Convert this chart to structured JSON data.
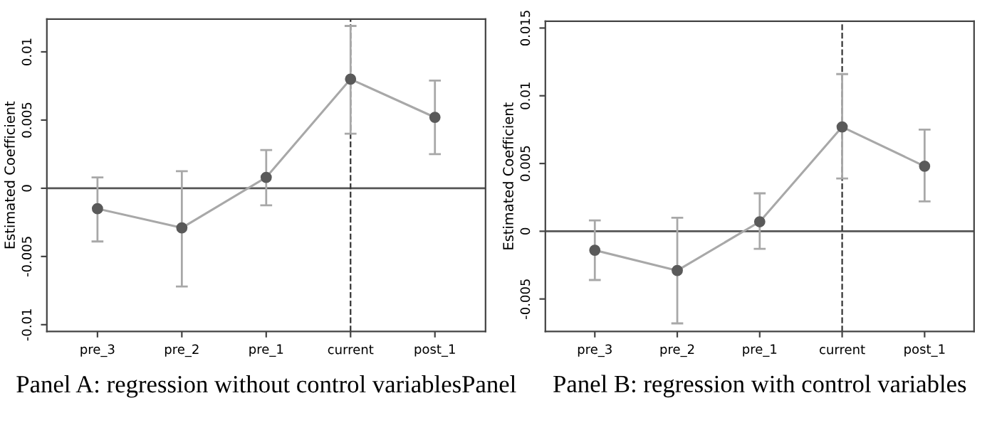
{
  "chart_data": [
    {
      "type": "line",
      "title": "Panel A: regression without control variablesPanel",
      "ylabel": "Estimated Coefficient",
      "categories": [
        "pre_3",
        "pre_2",
        "pre_1",
        "current",
        "post_1"
      ],
      "series": [
        {
          "color": "#a8a8a8",
          "colors": [
            "#5a5a5a",
            "#5a5a5a",
            "#5a5a5a",
            "#5a5a5a",
            "#5a5a5a"
          ],
          "values": [
            -0.0015,
            -0.0029,
            0.0008,
            0.008,
            0.0052
          ],
          "errors": [
            [
              -0.0039,
              0.0008
            ],
            [
              -0.0072,
              0.00125
            ],
            [
              -0.00125,
              0.0028
            ],
            [
              0.004,
              0.0119
            ],
            [
              0.0025,
              0.0079
            ]
          ]
        }
      ],
      "ylim": [
        -0.0105,
        0.0124
      ],
      "yticks": [
        -0.01,
        -0.005,
        0,
        0.005,
        0.01
      ],
      "marker": "circle",
      "line_style": "solid",
      "grid": false,
      "legend": false,
      "ref_lines": [
        {
          "axis": "y",
          "value": 0,
          "color": "#555555",
          "line_style": "solid"
        },
        {
          "axis": "x",
          "value": "current",
          "color": "#333333",
          "line_style": "dashed"
        }
      ]
    },
    {
      "type": "line",
      "title": "Panel B: regression with control variables",
      "ylabel": "Estimated Coefficient",
      "categories": [
        "pre_3",
        "pre_2",
        "pre_1",
        "current",
        "post_1"
      ],
      "series": [
        {
          "color": "#a8a8a8",
          "colors": [
            "#5a5a5a",
            "#5a5a5a",
            "#5a5a5a",
            "#5a5a5a",
            "#5a5a5a"
          ],
          "values": [
            -0.0014,
            -0.0029,
            0.0007,
            0.0077,
            0.0048
          ],
          "errors": [
            [
              -0.0036,
              0.0008
            ],
            [
              -0.0068,
              0.001
            ],
            [
              -0.0013,
              0.0028
            ],
            [
              0.0039,
              0.0116
            ],
            [
              0.0022,
              0.0075
            ]
          ]
        }
      ],
      "ylim": [
        -0.0074,
        0.0155
      ],
      "yticks": [
        -0.005,
        0,
        0.005,
        0.01,
        0.015
      ],
      "marker": "circle",
      "line_style": "solid",
      "grid": false,
      "legend": false,
      "ref_lines": [
        {
          "axis": "y",
          "value": 0,
          "color": "#555555",
          "line_style": "solid"
        },
        {
          "axis": "x",
          "value": "current",
          "color": "#333333",
          "line_style": "dashed"
        }
      ]
    }
  ]
}
